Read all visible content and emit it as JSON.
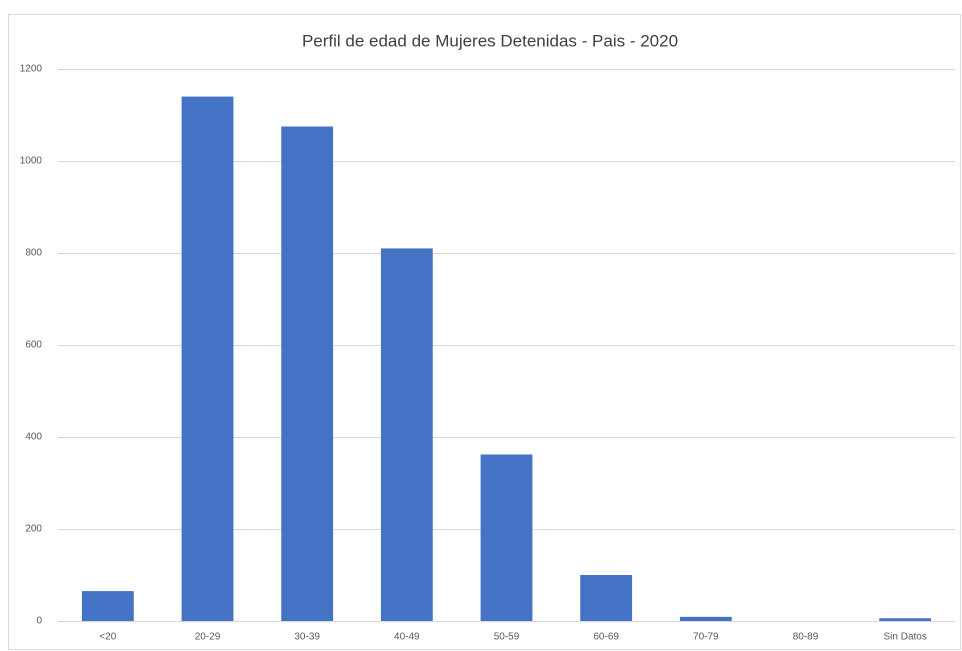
{
  "chart_data": {
    "type": "bar",
    "title": "Perfil de edad de Mujeres Detenidas - Pais - 2020",
    "categories": [
      "<20",
      "20-29",
      "30-39",
      "40-49",
      "50-59",
      "60-69",
      "70-79",
      "80-89",
      "Sin Datos"
    ],
    "values": [
      65,
      1140,
      1075,
      810,
      362,
      100,
      9,
      0,
      6
    ],
    "color": "#4472c4",
    "ylim": [
      0,
      1200
    ],
    "yticks": [
      0,
      200,
      400,
      600,
      800,
      1000,
      1200
    ],
    "grid": true
  }
}
